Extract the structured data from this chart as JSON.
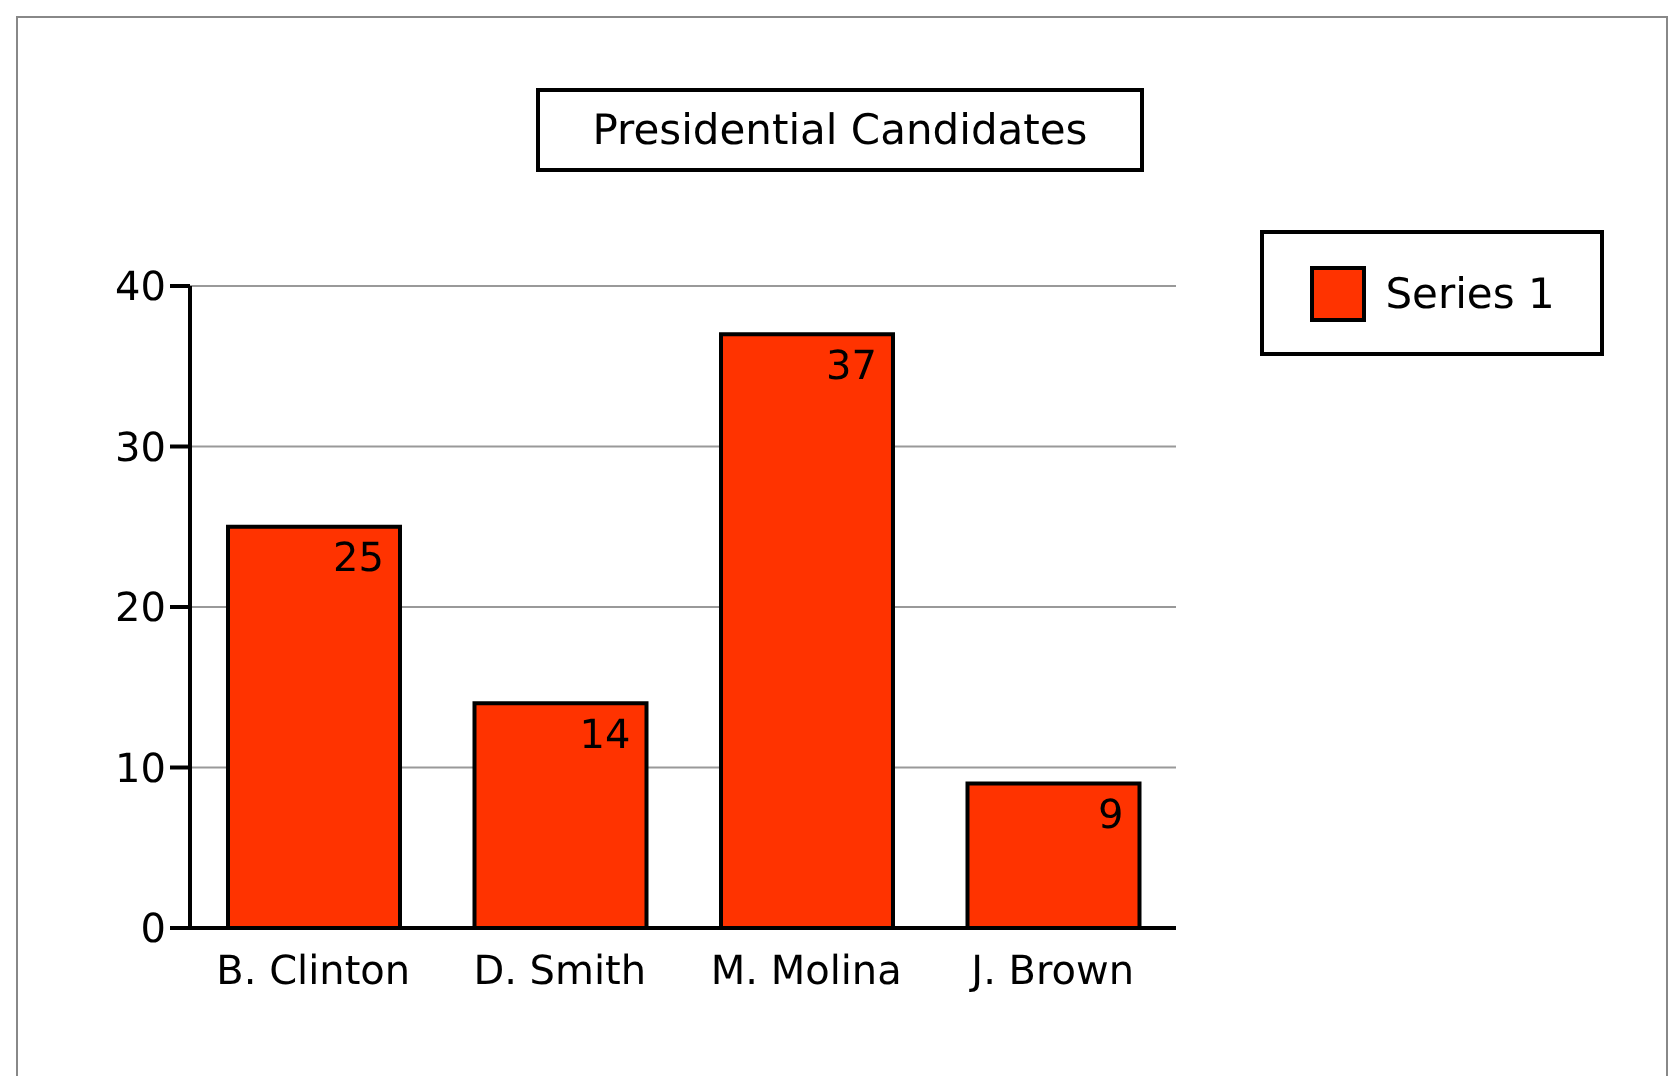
{
  "chart_data": {
    "type": "bar",
    "title": "Presidential Candidates",
    "categories": [
      "B. Clinton",
      "D. Smith",
      "M. Molina",
      "J. Brown"
    ],
    "series": [
      {
        "name": "Series 1",
        "color": "#ff3300",
        "values": [
          25,
          14,
          37,
          9
        ]
      }
    ],
    "ylim": [
      0,
      40
    ],
    "yticks": [
      0,
      10,
      20,
      30,
      40
    ],
    "grid": "y",
    "legend": "top right",
    "data_labels": true
  }
}
